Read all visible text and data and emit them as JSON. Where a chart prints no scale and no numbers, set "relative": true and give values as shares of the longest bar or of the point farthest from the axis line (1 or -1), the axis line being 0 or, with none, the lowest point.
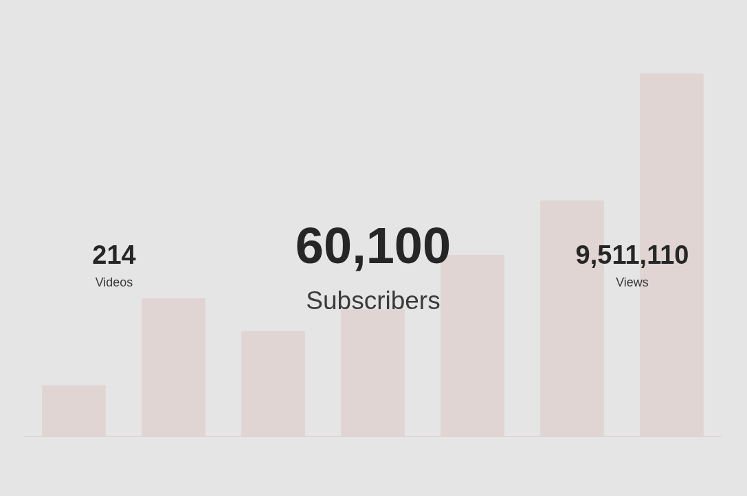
{
  "chart_data": {
    "type": "bar",
    "relative": true,
    "categories": [
      null,
      null,
      null,
      null,
      null,
      null,
      null
    ],
    "values": [
      0.14,
      0.38,
      0.29,
      0.35,
      0.5,
      0.65,
      1
    ],
    "color": "#e0d5d3",
    "annotations": [
      "214",
      "Videos",
      "60,100",
      "Subscribers",
      "9,511,110",
      "Views"
    ]
  }
}
